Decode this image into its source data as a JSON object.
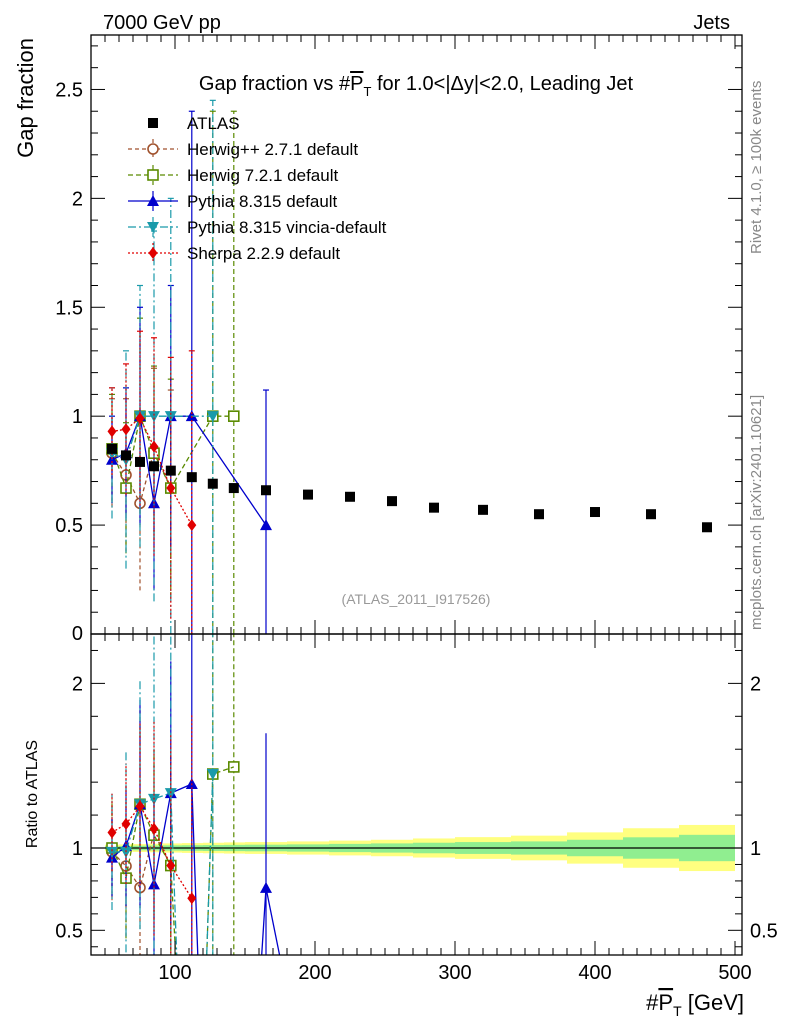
{
  "header": {
    "left": "7000 GeV pp",
    "right": "Jets"
  },
  "side_labels": {
    "rivet": "Rivet 4.1.0, ≥ 100k events",
    "mcplots": "mcplots.cern.ch [arXiv:2401.10621]"
  },
  "watermark": "(ATLAS_2011_I917526)",
  "colors": {
    "atlas": "#000000",
    "herwigpp": "#a0522d",
    "herwig7": "#5a8a00",
    "pythia": "#0000cc",
    "vincia": "#1a9aaa",
    "sherpa": "#e00000",
    "band_inner": "#90ee90",
    "band_outer": "#ffff80"
  },
  "chart_data": {
    "type": "scatter",
    "title": "Gap fraction vs #P_T for 1.0<|Δy|<2.0, Leading Jet",
    "title_parts": {
      "pre": "Gap fraction vs #",
      "p": "P",
      "t": "T",
      "post": " for 1.0<|Δy|<2.0, Leading Jet"
    },
    "xlabel": {
      "pre": "#",
      "p": "P",
      "t": "T",
      "post": " [GeV]"
    },
    "ylabel": "Gap fraction",
    "ratio_ylabel": "Ratio to ATLAS",
    "xlim": [
      40,
      505
    ],
    "ylim": [
      0,
      2.75
    ],
    "ratio_ylim": [
      0.35,
      2.3
    ],
    "x_ticks": [
      100,
      200,
      300,
      400,
      500
    ],
    "y_ticks": [
      0.5,
      1,
      1.5,
      2,
      2.5
    ],
    "ratio_ticks": [
      0.5,
      1,
      2
    ],
    "legend": [
      "ATLAS",
      "Herwig++ 2.7.1 default",
      "Herwig 7.2.1 default",
      "Pythia 8.315 default",
      "Pythia 8.315 vincia-default",
      "Sherpa 2.2.9 default"
    ],
    "atlas": {
      "x": [
        55,
        65,
        75,
        85,
        97,
        112,
        127,
        142,
        165,
        195,
        225,
        255,
        285,
        320,
        360,
        400,
        440,
        480
      ],
      "y": [
        0.85,
        0.82,
        0.79,
        0.77,
        0.75,
        0.72,
        0.69,
        0.67,
        0.66,
        0.64,
        0.63,
        0.61,
        0.58,
        0.57,
        0.55,
        0.56,
        0.55,
        0.49
      ],
      "band_edges": [
        50,
        60,
        70,
        80,
        90,
        105,
        120,
        135,
        150,
        180,
        210,
        240,
        270,
        300,
        340,
        380,
        420,
        460,
        500
      ],
      "band_inner": [
        0.01,
        0.012,
        0.014,
        0.015,
        0.016,
        0.017,
        0.018,
        0.019,
        0.02,
        0.022,
        0.025,
        0.028,
        0.032,
        0.036,
        0.04,
        0.05,
        0.065,
        0.08
      ],
      "band_outer": [
        0.02,
        0.022,
        0.024,
        0.026,
        0.028,
        0.03,
        0.032,
        0.034,
        0.036,
        0.04,
        0.045,
        0.05,
        0.058,
        0.066,
        0.075,
        0.095,
        0.12,
        0.14
      ]
    },
    "series": [
      {
        "name": "Herwig++ 2.7.1 default",
        "key": "herwigpp",
        "marker": "circle-open",
        "dash": "4,3",
        "x": [
          55,
          65,
          75,
          85,
          97
        ],
        "y": [
          0.83,
          0.73,
          0.6,
          0.84,
          0.67
        ],
        "err": [
          0.25,
          0.35,
          0.4,
          0.38,
          0.45
        ]
      },
      {
        "name": "Herwig 7.2.1 default",
        "key": "herwig7",
        "marker": "square-open",
        "dash": "5,3",
        "x": [
          55,
          65,
          75,
          85,
          97,
          127,
          142
        ],
        "y": [
          0.85,
          0.67,
          1.0,
          0.83,
          0.67,
          1.0,
          1.0
        ],
        "err": [
          0.25,
          0.3,
          0.45,
          0.4,
          0.5,
          1.4,
          1.4
        ]
      },
      {
        "name": "Pythia 8.315 default",
        "key": "pythia",
        "marker": "triangle-up",
        "dash": "",
        "x": [
          55,
          65,
          75,
          85,
          97,
          112,
          165
        ],
        "y": [
          0.8,
          0.83,
          1.0,
          0.6,
          1.0,
          1.0,
          0.5
        ],
        "err": [
          0.2,
          0.3,
          0.5,
          0.4,
          0.6,
          1.4,
          0.62
        ]
      },
      {
        "name": "Pythia 8.315 vincia-default",
        "key": "vincia",
        "marker": "triangle-down",
        "dash": "8,3,2,3",
        "x": [
          55,
          65,
          75,
          85,
          97,
          127
        ],
        "y": [
          0.83,
          0.8,
          1.0,
          1.0,
          1.0,
          1.0
        ],
        "err": [
          0.3,
          0.5,
          0.6,
          0.85,
          1.0,
          1.45
        ]
      },
      {
        "name": "Sherpa 2.2.9 default",
        "key": "sherpa",
        "marker": "diamond",
        "dash": "2,2",
        "x": [
          55,
          65,
          75,
          85,
          97,
          112
        ],
        "y": [
          0.93,
          0.94,
          0.99,
          0.86,
          0.67,
          0.5
        ],
        "err": [
          0.2,
          0.3,
          0.4,
          0.5,
          0.6,
          0.8
        ]
      }
    ]
  }
}
